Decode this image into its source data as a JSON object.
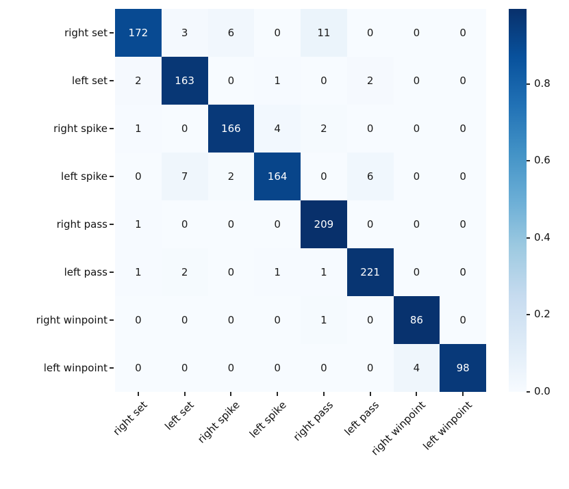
{
  "figure": {
    "background": "#ffffff"
  },
  "chart_data": {
    "type": "heatmap",
    "title": "",
    "xlabel": "",
    "ylabel": "",
    "row_labels": [
      "right set",
      "left set",
      "right spike",
      "left spike",
      "right pass",
      "left pass",
      "right winpoint",
      "left winpoint"
    ],
    "col_labels": [
      "right set",
      "left set",
      "right spike",
      "left spike",
      "right pass",
      "left pass",
      "right winpoint",
      "left winpoint"
    ],
    "matrix": [
      [
        172,
        3,
        6,
        0,
        11,
        0,
        0,
        0
      ],
      [
        2,
        163,
        0,
        1,
        0,
        2,
        0,
        0
      ],
      [
        1,
        0,
        166,
        4,
        2,
        0,
        0,
        0
      ],
      [
        0,
        7,
        2,
        164,
        0,
        6,
        0,
        0
      ],
      [
        1,
        0,
        0,
        0,
        209,
        0,
        0,
        0
      ],
      [
        1,
        2,
        0,
        1,
        1,
        221,
        0,
        0
      ],
      [
        0,
        0,
        0,
        0,
        1,
        0,
        86,
        0
      ],
      [
        0,
        0,
        0,
        0,
        0,
        0,
        4,
        98
      ]
    ],
    "annotations": "raw counts shown in cells",
    "cell_color_mode": "row-normalized",
    "colormap": "Blues",
    "colormap_stops": [
      "#f7fbff",
      "#deebf7",
      "#c6dbef",
      "#9ecae1",
      "#6baed6",
      "#4292c6",
      "#2171b5",
      "#08519c",
      "#08306b"
    ],
    "x_tick_rotation": 45,
    "grid": false,
    "legend": false,
    "text_color_dark": "#1a1a1a",
    "text_color_light": "#ffffff",
    "colorbar": {
      "position": "right",
      "ticks": [
        0.0,
        0.2,
        0.4,
        0.6,
        0.8
      ],
      "tick_labels": [
        "0.0",
        "0.2",
        "0.4",
        "0.6",
        "0.8"
      ]
    }
  }
}
